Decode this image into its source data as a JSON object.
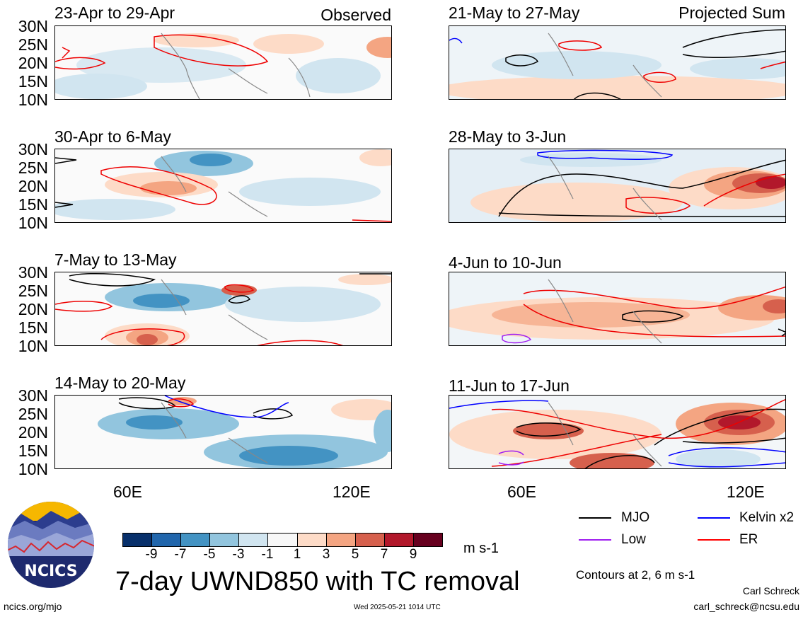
{
  "panels": [
    {
      "title": "23-Apr to 29-Apr",
      "tag": "Observed"
    },
    {
      "title": "21-May to 27-May",
      "tag": "Projected Sum"
    },
    {
      "title": "30-Apr to 6-May",
      "tag": ""
    },
    {
      "title": "28-May to 3-Jun",
      "tag": ""
    },
    {
      "title": "7-May to 13-May",
      "tag": ""
    },
    {
      "title": "4-Jun to 10-Jun",
      "tag": ""
    },
    {
      "title": "14-May to 20-May",
      "tag": ""
    },
    {
      "title": "11-Jun to 17-Jun",
      "tag": ""
    }
  ],
  "lat_labels": [
    "30N",
    "25N",
    "20N",
    "15N",
    "10N"
  ],
  "lon_labels": [
    "60E",
    "120E"
  ],
  "colorbar": {
    "labels": [
      "-9",
      "-7",
      "-5",
      "-3",
      "-1",
      "1",
      "3",
      "5",
      "7",
      "9"
    ],
    "colors": [
      "#08306b",
      "#2166ac",
      "#4393c3",
      "#92c5de",
      "#d1e5f0",
      "#f7f7f7",
      "#fddbc7",
      "#f4a582",
      "#d6604d",
      "#b2182b",
      "#67001f"
    ],
    "units": "m s-1"
  },
  "legend": {
    "items": [
      {
        "label": "MJO",
        "color": "#000000"
      },
      {
        "label": "Kelvin x2",
        "color": "#0000ff"
      },
      {
        "label": "Low",
        "color": "#a020f0"
      },
      {
        "label": "ER",
        "color": "#ff0000"
      }
    ],
    "contours_note": "Contours at 2, 6 m s-1"
  },
  "main_title": "7-day UWND850 with TC removal",
  "logo_text": "NCICS",
  "footer": {
    "site": "ncics.org/mjo",
    "timestamp": "Wed 2025-05-21 1014 UTC",
    "author": "Carl Schreck",
    "email": "carl_schreck@ncsu.edu"
  }
}
